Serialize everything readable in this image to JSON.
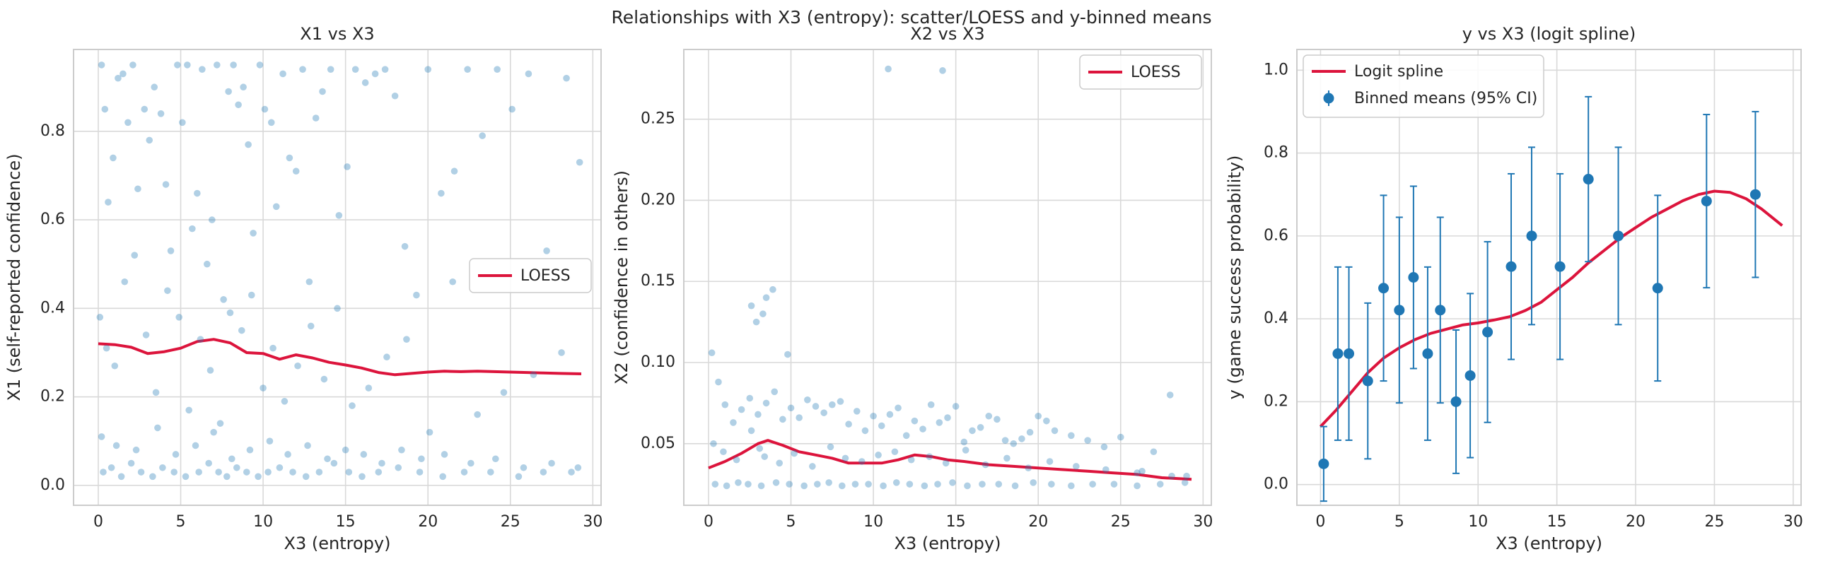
{
  "figure": {
    "suptitle": "Relationships with X3 (entropy): scatter/LOESS and y-binned means"
  },
  "chart_data": [
    {
      "type": "scatter",
      "title": "X1 vs X3",
      "xlabel": "X3 (entropy)",
      "ylabel": "X1 (self-reported confidence)",
      "xlim": [
        -1.5,
        30.5
      ],
      "ylim": [
        -0.045,
        0.985
      ],
      "xticks": [
        0,
        5,
        10,
        15,
        20,
        25,
        30
      ],
      "yticks": [
        0.0,
        0.2,
        0.4,
        0.6,
        0.8
      ],
      "ytick_labels": [
        "0.0",
        "0.2",
        "0.4",
        "0.6",
        "0.8"
      ],
      "grid": true,
      "legend": {
        "placement": "center-right",
        "entries": [
          "LOESS"
        ]
      },
      "series": [
        {
          "name": "LOESS",
          "kind": "line",
          "color": "#dc143c",
          "x": [
            0,
            1,
            2,
            3,
            4,
            5,
            6,
            7,
            8,
            9,
            10,
            11,
            12,
            13,
            14,
            15,
            16,
            17,
            18,
            19,
            20,
            21,
            22,
            23,
            24,
            25,
            26,
            27,
            28,
            29.3
          ],
          "y": [
            0.32,
            0.318,
            0.312,
            0.298,
            0.302,
            0.31,
            0.325,
            0.33,
            0.322,
            0.3,
            0.298,
            0.285,
            0.295,
            0.288,
            0.278,
            0.272,
            0.265,
            0.255,
            0.25,
            0.253,
            0.256,
            0.258,
            0.257,
            0.258,
            0.257,
            0.256,
            0.255,
            0.254,
            0.253,
            0.252
          ]
        },
        {
          "kind": "scatter",
          "color": "#1f77b4",
          "x": [
            0.2,
            0.4,
            0.6,
            0.9,
            1.2,
            1.5,
            1.8,
            2.1,
            2.4,
            2.8,
            3.1,
            3.4,
            3.8,
            4.1,
            4.4,
            4.8,
            5.1,
            5.4,
            5.7,
            6.0,
            6.3,
            6.6,
            6.9,
            7.2,
            7.6,
            7.9,
            8.2,
            8.5,
            8.8,
            9.1,
            9.4,
            9.8,
            10.1,
            10.5,
            10.8,
            11.2,
            11.6,
            12.0,
            12.4,
            12.8,
            13.2,
            13.6,
            14.1,
            14.6,
            15.1,
            15.6,
            16.2,
            16.8,
            17.4,
            18.0,
            18.6,
            19.3,
            20.0,
            20.8,
            21.6,
            22.4,
            23.3,
            24.2,
            25.1,
            26.1,
            27.2,
            28.4,
            29.2,
            0.1,
            0.5,
            1.0,
            1.6,
            2.2,
            2.9,
            3.5,
            4.2,
            4.9,
            5.5,
            6.2,
            6.8,
            7.4,
            8.0,
            8.7,
            9.3,
            10.0,
            10.6,
            11.3,
            12.1,
            12.9,
            13.7,
            14.5,
            15.4,
            16.4,
            17.5,
            18.7,
            20.1,
            21.5,
            23.0,
            24.6,
            26.4,
            28.1,
            0.3,
            0.8,
            1.4,
            2.0,
            2.6,
            3.3,
            3.9,
            4.6,
            5.3,
            6.1,
            6.7,
            7.3,
            7.8,
            8.4,
            9.0,
            9.7,
            10.3,
            11.0,
            11.8,
            12.6,
            13.4,
            14.3,
            15.2,
            16.0,
            17.0,
            18.2,
            19.5,
            20.9,
            22.2,
            23.8,
            25.5,
            27.0,
            28.7,
            0.2,
            1.1,
            2.3,
            3.6,
            4.7,
            5.9,
            7.0,
            8.1,
            9.2,
            10.4,
            11.5,
            12.7,
            13.9,
            15.0,
            16.1,
            17.2,
            18.4,
            19.6,
            21.0,
            22.6,
            24.1,
            25.8,
            27.5,
            29.1
          ],
          "y": [
            0.95,
            0.85,
            0.64,
            0.74,
            0.92,
            0.93,
            0.82,
            0.95,
            0.67,
            0.85,
            0.78,
            0.9,
            0.84,
            0.68,
            0.53,
            0.95,
            0.82,
            0.95,
            0.58,
            0.66,
            0.94,
            0.5,
            0.6,
            0.95,
            0.42,
            0.89,
            0.95,
            0.86,
            0.9,
            0.77,
            0.57,
            0.95,
            0.85,
            0.82,
            0.63,
            0.93,
            0.74,
            0.71,
            0.94,
            0.46,
            0.83,
            0.89,
            0.94,
            0.61,
            0.72,
            0.94,
            0.91,
            0.93,
            0.94,
            0.88,
            0.54,
            0.43,
            0.94,
            0.66,
            0.71,
            0.94,
            0.79,
            0.94,
            0.85,
            0.93,
            0.53,
            0.92,
            0.73,
            0.38,
            0.31,
            0.27,
            0.46,
            0.52,
            0.34,
            0.21,
            0.44,
            0.38,
            0.17,
            0.33,
            0.26,
            0.14,
            0.39,
            0.35,
            0.43,
            0.22,
            0.31,
            0.19,
            0.27,
            0.36,
            0.24,
            0.4,
            0.18,
            0.22,
            0.29,
            0.33,
            0.12,
            0.46,
            0.16,
            0.21,
            0.25,
            0.3,
            0.03,
            0.04,
            0.02,
            0.05,
            0.03,
            0.02,
            0.04,
            0.03,
            0.02,
            0.03,
            0.05,
            0.03,
            0.02,
            0.04,
            0.03,
            0.02,
            0.03,
            0.04,
            0.03,
            0.02,
            0.03,
            0.05,
            0.03,
            0.02,
            0.03,
            0.04,
            0.03,
            0.02,
            0.03,
            0.03,
            0.02,
            0.03,
            0.03,
            0.11,
            0.09,
            0.08,
            0.13,
            0.07,
            0.09,
            0.12,
            0.06,
            0.08,
            0.1,
            0.07,
            0.09,
            0.06,
            0.08,
            0.07,
            0.05,
            0.08,
            0.06,
            0.07,
            0.05,
            0.06,
            0.04,
            0.05,
            0.04
          ]
        }
      ]
    },
    {
      "type": "scatter",
      "title": "X2 vs X3",
      "xlabel": "X3 (entropy)",
      "ylabel": "X2 (confidence in others)",
      "xlim": [
        -1.5,
        30.5
      ],
      "ylim": [
        0.012,
        0.293
      ],
      "xticks": [
        0,
        5,
        10,
        15,
        20,
        25,
        30
      ],
      "yticks": [
        0.05,
        0.1,
        0.15,
        0.2,
        0.25
      ],
      "ytick_labels": [
        "0.05",
        "0.10",
        "0.15",
        "0.20",
        "0.25"
      ],
      "grid": true,
      "legend": {
        "placement": "top-right",
        "entries": [
          "LOESS"
        ]
      },
      "series": [
        {
          "name": "LOESS",
          "kind": "line",
          "color": "#dc143c",
          "x": [
            0,
            1,
            2,
            3,
            3.6,
            4.5,
            5.5,
            6.5,
            7.5,
            8.5,
            9.5,
            10.5,
            11.5,
            12.5,
            13.5,
            14.5,
            15.5,
            17,
            18.5,
            20,
            21.5,
            23,
            24.5,
            26,
            27.5,
            29.3
          ],
          "y": [
            0.035,
            0.039,
            0.044,
            0.05,
            0.052,
            0.049,
            0.045,
            0.043,
            0.041,
            0.038,
            0.038,
            0.038,
            0.04,
            0.043,
            0.042,
            0.04,
            0.039,
            0.037,
            0.036,
            0.035,
            0.034,
            0.033,
            0.032,
            0.031,
            0.029,
            0.028
          ]
        },
        {
          "kind": "scatter",
          "color": "#1f77b4",
          "x": [
            0.2,
            0.6,
            1.0,
            1.5,
            2.0,
            2.5,
            3.0,
            3.5,
            4.0,
            4.5,
            5.0,
            5.5,
            6.0,
            6.5,
            7.0,
            7.5,
            8.0,
            8.5,
            9.0,
            9.5,
            10.0,
            10.5,
            11.0,
            11.5,
            12.0,
            12.5,
            13.0,
            13.5,
            14.0,
            14.5,
            15.0,
            15.5,
            16.0,
            16.5,
            17.0,
            17.5,
            18.0,
            18.5,
            19.0,
            19.5,
            20.0,
            20.5,
            21.0,
            22.0,
            23.0,
            24.0,
            25.0,
            26.0,
            27.0,
            28.0,
            29.0,
            0.3,
            0.9,
            1.7,
            2.6,
            3.1,
            3.4,
            4.3,
            5.2,
            6.3,
            7.4,
            8.3,
            9.3,
            10.3,
            11.3,
            12.3,
            13.4,
            14.4,
            15.6,
            16.8,
            18.1,
            19.4,
            20.7,
            22.3,
            24.1,
            26.3,
            28.1,
            2.6,
            2.9,
            3.3,
            3.5,
            4.8,
            3.9,
            10.9,
            14.2,
            0.4,
            1.1,
            1.8,
            2.4,
            3.2,
            4.1,
            4.9,
            5.8,
            6.6,
            7.3,
            8.1,
            8.9,
            9.7,
            10.6,
            11.4,
            12.2,
            13.1,
            13.9,
            14.8,
            15.7,
            16.6,
            17.6,
            18.6,
            19.7,
            20.8,
            22.0,
            23.3,
            24.6,
            26.0,
            27.4,
            28.9
          ],
          "y": [
            0.106,
            0.088,
            0.074,
            0.063,
            0.071,
            0.078,
            0.068,
            0.075,
            0.082,
            0.065,
            0.072,
            0.066,
            0.077,
            0.073,
            0.069,
            0.074,
            0.076,
            0.062,
            0.07,
            0.058,
            0.067,
            0.061,
            0.068,
            0.072,
            0.055,
            0.064,
            0.059,
            0.074,
            0.063,
            0.066,
            0.073,
            0.051,
            0.058,
            0.06,
            0.067,
            0.065,
            0.052,
            0.05,
            0.053,
            0.057,
            0.067,
            0.064,
            0.058,
            0.055,
            0.052,
            0.048,
            0.054,
            0.032,
            0.045,
            0.08,
            0.03,
            0.05,
            0.045,
            0.04,
            0.058,
            0.047,
            0.042,
            0.038,
            0.044,
            0.036,
            0.048,
            0.041,
            0.039,
            0.043,
            0.045,
            0.04,
            0.042,
            0.038,
            0.046,
            0.037,
            0.041,
            0.035,
            0.039,
            0.036,
            0.034,
            0.033,
            0.03,
            0.135,
            0.125,
            0.13,
            0.14,
            0.105,
            0.145,
            0.281,
            0.28,
            0.025,
            0.024,
            0.026,
            0.025,
            0.024,
            0.026,
            0.025,
            0.024,
            0.025,
            0.026,
            0.024,
            0.025,
            0.025,
            0.024,
            0.026,
            0.025,
            0.024,
            0.025,
            0.026,
            0.024,
            0.025,
            0.025,
            0.024,
            0.026,
            0.025,
            0.024,
            0.025,
            0.025,
            0.024,
            0.025,
            0.026
          ]
        }
      ]
    },
    {
      "type": "line",
      "title": "y vs X3 (logit spline)",
      "xlabel": "X3 (entropy)",
      "ylabel": "y (game success probability)",
      "xlim": [
        -1.5,
        30.5
      ],
      "ylim": [
        -0.05,
        1.05
      ],
      "xticks": [
        0,
        5,
        10,
        15,
        20,
        25,
        30
      ],
      "yticks": [
        0.0,
        0.2,
        0.4,
        0.6,
        0.8,
        1.0
      ],
      "ytick_labels": [
        "0.0",
        "0.2",
        "0.4",
        "0.6",
        "0.8",
        "1.0"
      ],
      "grid": true,
      "legend": {
        "placement": "top-left",
        "entries": [
          "Logit spline",
          "Binned means (95% CI)"
        ]
      },
      "series": [
        {
          "name": "Logit spline",
          "kind": "line",
          "color": "#dc143c",
          "x": [
            0,
            1,
            2,
            3,
            4,
            5,
            6,
            7,
            8,
            9,
            10,
            11,
            12,
            13,
            14,
            15,
            16,
            17,
            18,
            19,
            20,
            21,
            22,
            23,
            24,
            25,
            26,
            27,
            28,
            29.3
          ],
          "y": [
            0.14,
            0.18,
            0.225,
            0.27,
            0.305,
            0.33,
            0.35,
            0.365,
            0.375,
            0.385,
            0.39,
            0.397,
            0.405,
            0.42,
            0.44,
            0.47,
            0.5,
            0.535,
            0.565,
            0.595,
            0.62,
            0.645,
            0.665,
            0.685,
            0.7,
            0.708,
            0.705,
            0.69,
            0.665,
            0.625
          ]
        },
        {
          "name": "Binned means (95% CI)",
          "kind": "errorbar",
          "color": "#1f77b4",
          "x": [
            0.2,
            1.1,
            1.8,
            3.0,
            4.0,
            5.0,
            5.9,
            6.8,
            7.6,
            8.6,
            9.5,
            10.6,
            12.1,
            13.4,
            15.2,
            17.0,
            18.9,
            21.4,
            24.5,
            27.6
          ],
          "y": [
            0.05,
            0.316,
            0.316,
            0.25,
            0.474,
            0.421,
            0.5,
            0.316,
            0.421,
            0.2,
            0.263,
            0.368,
            0.526,
            0.6,
            0.526,
            0.737,
            0.6,
            0.474,
            0.684,
            0.7
          ],
          "lower": [
            -0.04,
            0.107,
            0.107,
            0.062,
            0.25,
            0.197,
            0.28,
            0.107,
            0.197,
            0.027,
            0.065,
            0.15,
            0.302,
            0.386,
            0.302,
            0.538,
            0.386,
            0.25,
            0.475,
            0.5
          ],
          "upper": [
            0.14,
            0.525,
            0.525,
            0.438,
            0.698,
            0.645,
            0.72,
            0.525,
            0.645,
            0.373,
            0.461,
            0.586,
            0.75,
            0.814,
            0.75,
            0.936,
            0.814,
            0.698,
            0.893,
            0.9
          ]
        }
      ]
    }
  ]
}
